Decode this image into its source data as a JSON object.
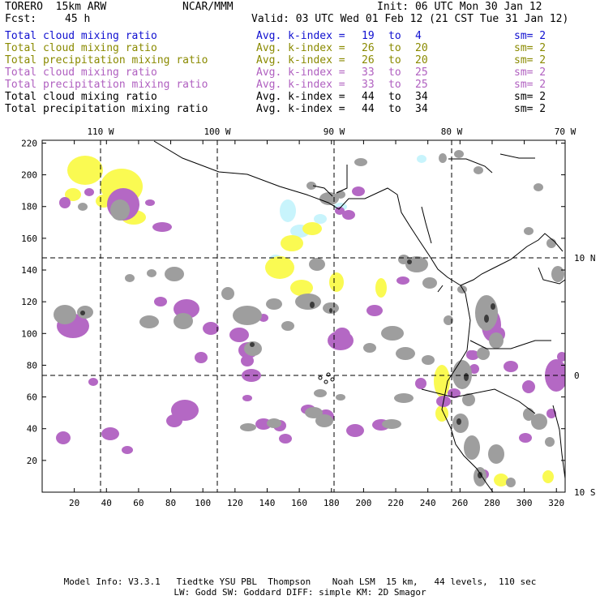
{
  "header": {
    "model": "TORERO  15km ARW",
    "org": "NCAR/MMM",
    "init": "Init: 06 UTC Mon 30 Jan 12",
    "fcst_label": "Fcst:",
    "fcst_value": "45 h",
    "valid": "Valid: 03 UTC Wed 01 Feb 12 (21 CST Tue 31 Jan 12)"
  },
  "legend": [
    {
      "field": "Total cloud mixing ratio",
      "index": "Avg. k-index = ",
      "from": "19",
      "to": "4",
      "sm": "sm= 2",
      "color": "#1010d0"
    },
    {
      "field": "Total cloud mixing ratio",
      "index": "Avg. k-index = ",
      "from": "26",
      "to": "20",
      "sm": "sm= 2",
      "color": "#8a8a00"
    },
    {
      "field": "Total precipitation mixing ratio",
      "index": "Avg. k-index = ",
      "from": "26",
      "to": "20",
      "sm": "sm= 2",
      "color": "#8a8a00"
    },
    {
      "field": "Total cloud mixing ratio",
      "index": "Avg. k-index = ",
      "from": "33",
      "to": "25",
      "sm": "sm= 2",
      "color": "#b060c0"
    },
    {
      "field": "Total precipitation mixing ratio",
      "index": "Avg. k-index = ",
      "from": "33",
      "to": "25",
      "sm": "sm= 2",
      "color": "#b060c0"
    },
    {
      "field": "Total cloud mixing ratio",
      "index": "Avg. k-index = ",
      "from": "44",
      "to": "34",
      "sm": "sm= 2",
      "color": "#000000"
    },
    {
      "field": "Total precipitation mixing ratio",
      "index": "Avg. k-index = ",
      "from": "44",
      "to": "34",
      "sm": "sm= 2",
      "color": "#000000"
    }
  ],
  "legend_to_word": "to",
  "map": {
    "lon_labels": [
      "110 W",
      "100 W",
      "90 W",
      "80 W",
      "70 W"
    ],
    "lat_labels": [
      "10 N",
      "0",
      "10 S"
    ],
    "x_ticks": [
      "20",
      "40",
      "60",
      "80",
      "100",
      "120",
      "140",
      "160",
      "180",
      "200",
      "220",
      "240",
      "260",
      "280",
      "300",
      "320"
    ],
    "y_ticks": [
      "20",
      "40",
      "60",
      "80",
      "100",
      "120",
      "140",
      "160",
      "180",
      "200",
      "220"
    ],
    "colors": {
      "cyan": "#c8f4fc",
      "yellow": "#fafa52",
      "purple": "#b468c4",
      "gray": "#9e9e9e",
      "dark": "#3c3c3c",
      "coast": "#000000"
    }
  },
  "footer": {
    "line1": "Model Info: V3.3.1   Tiedtke YSU PBL  Thompson    Noah LSM  15 km,   44 levels,  110 sec",
    "line2": "LW: Godd SW: Goddard DIFF: simple KM: 2D Smagor"
  }
}
